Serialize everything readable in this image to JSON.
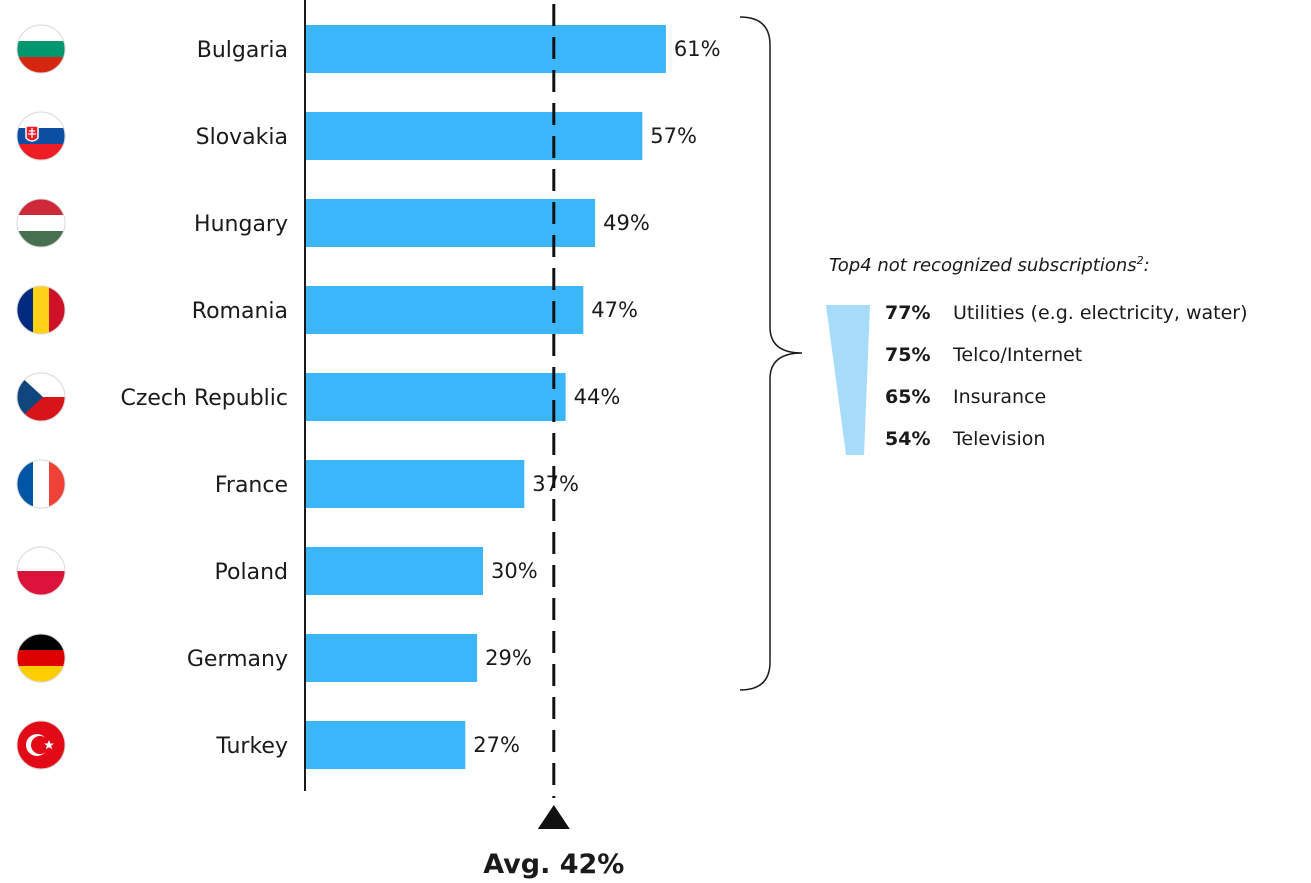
{
  "chart_data": {
    "type": "bar",
    "orientation": "horizontal",
    "categories": [
      "Bulgaria",
      "Slovakia",
      "Hungary",
      "Romania",
      "Czech Republic",
      "France",
      "Poland",
      "Germany",
      "Turkey"
    ],
    "values": [
      61,
      57,
      49,
      47,
      44,
      37,
      30,
      29,
      27
    ],
    "value_labels": [
      "61%",
      "57%",
      "49%",
      "47%",
      "44%",
      "37%",
      "30%",
      "29%",
      "27%"
    ],
    "xlim": [
      0,
      100
    ],
    "average": {
      "value": 42,
      "label": "Avg. 42%"
    },
    "bar_color": "#3bb6fb",
    "grid": false,
    "flag_icons": [
      "bulgaria-flag-icon",
      "slovakia-flag-icon",
      "hungary-flag-icon",
      "romania-flag-icon",
      "czech-republic-flag-icon",
      "france-flag-icon",
      "poland-flag-icon",
      "germany-flag-icon",
      "turkey-flag-icon"
    ]
  },
  "top4": {
    "title": "Top4 not recognized subscriptions",
    "superscript": "2",
    "title_suffix": ":",
    "wedge_color": "#a6dcfa",
    "items": [
      {
        "pct": "77%",
        "label": "Utilities (e.g. electricity, water)"
      },
      {
        "pct": "75%",
        "label": "Telco/Internet"
      },
      {
        "pct": "65%",
        "label": "Insurance"
      },
      {
        "pct": "54%",
        "label": "Television"
      }
    ]
  }
}
